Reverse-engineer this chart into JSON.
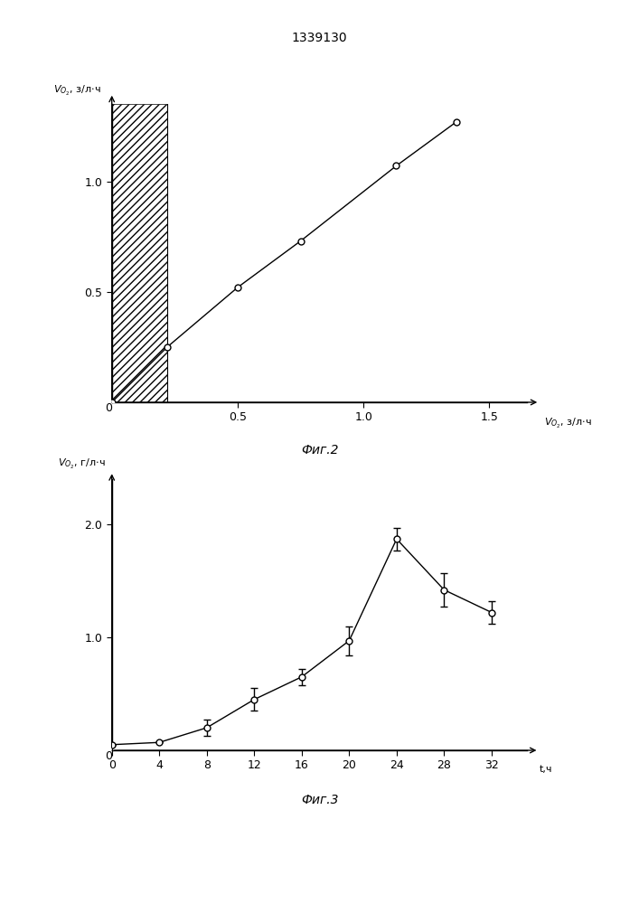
{
  "title": "1339130",
  "fig2": {
    "caption": "Фиг.2",
    "ylabel": "Vₒ₂, з/л·ч",
    "xlabel": "Vₒ₂, з/л·ч",
    "xlim": [
      0,
      1.65
    ],
    "ylim": [
      0,
      1.35
    ],
    "xticks": [
      0.5,
      1.0,
      1.5
    ],
    "yticks": [
      0.5,
      1.0
    ],
    "line_x": [
      0.0,
      0.22,
      0.5,
      0.75,
      1.13,
      1.37
    ],
    "line_y": [
      0.0,
      0.25,
      0.52,
      0.73,
      1.07,
      1.27
    ],
    "hatch_xmax": 0.22
  },
  "fig3": {
    "caption": "Фиг.3",
    "xlabel": "t,ч",
    "ylabel": "Vₒ₂, г/л·ч",
    "xlim": [
      0,
      35
    ],
    "ylim": [
      0,
      2.4
    ],
    "xticks": [
      0,
      4,
      8,
      12,
      16,
      20,
      24,
      28,
      32
    ],
    "yticks": [
      1.0,
      2.0
    ],
    "x": [
      0,
      4,
      8,
      12,
      16,
      20,
      24,
      28,
      32
    ],
    "y": [
      0.05,
      0.07,
      0.2,
      0.45,
      0.65,
      0.97,
      1.87,
      1.42,
      1.22
    ],
    "yerr": [
      0.0,
      0.0,
      0.07,
      0.1,
      0.07,
      0.13,
      0.1,
      0.15,
      0.1
    ]
  },
  "bg": "#ffffff",
  "lc": "#000000",
  "mfc": "#ffffff",
  "mec": "#000000"
}
